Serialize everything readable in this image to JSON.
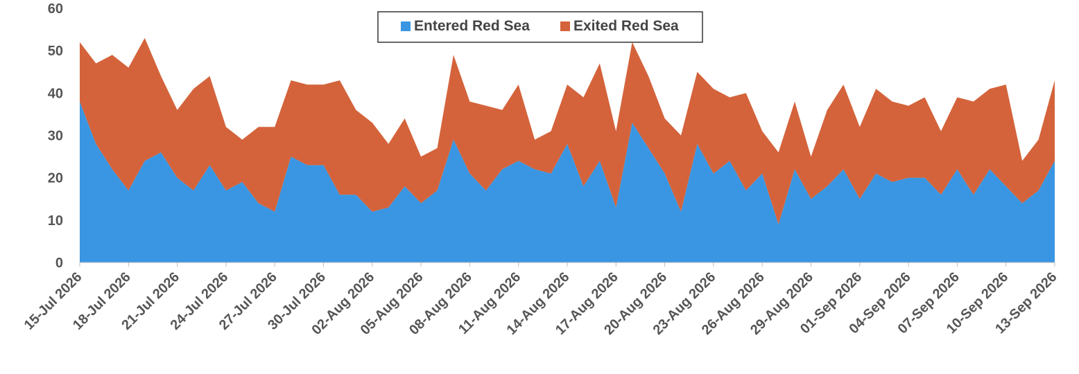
{
  "chart_data": {
    "type": "area",
    "stacked": true,
    "x": [
      "15-Jul 2026",
      "16-Jul 2026",
      "17-Jul 2026",
      "18-Jul 2026",
      "19-Jul 2026",
      "20-Jul 2026",
      "21-Jul 2026",
      "22-Jul 2026",
      "23-Jul 2026",
      "24-Jul 2026",
      "25-Jul 2026",
      "26-Jul 2026",
      "27-Jul 2026",
      "28-Jul 2026",
      "29-Jul 2026",
      "30-Jul 2026",
      "31-Jul 2026",
      "01-Aug 2026",
      "02-Aug 2026",
      "03-Aug 2026",
      "04-Aug 2026",
      "05-Aug 2026",
      "06-Aug 2026",
      "07-Aug 2026",
      "08-Aug 2026",
      "09-Aug 2026",
      "10-Aug 2026",
      "11-Aug 2026",
      "12-Aug 2026",
      "13-Aug 2026",
      "14-Aug 2026",
      "15-Aug 2026",
      "16-Aug 2026",
      "17-Aug 2026",
      "18-Aug 2026",
      "19-Aug 2026",
      "20-Aug 2026",
      "21-Aug 2026",
      "22-Aug 2026",
      "23-Aug 2026",
      "24-Aug 2026",
      "25-Aug 2026",
      "26-Aug 2026",
      "27-Aug 2026",
      "28-Aug 2026",
      "29-Aug 2026",
      "30-Aug 2026",
      "31-Aug 2026",
      "01-Sep 2026",
      "02-Sep 2026",
      "03-Sep 2026",
      "04-Sep 2026",
      "05-Sep 2026",
      "06-Sep 2026",
      "07-Sep 2026",
      "08-Sep 2026",
      "09-Sep 2026",
      "10-Sep 2026",
      "11-Sep 2026",
      "12-Sep 2026",
      "13-Sep 2026"
    ],
    "x_tick_labels": [
      "15-Jul 2026",
      "18-Jul 2026",
      "21-Jul 2026",
      "24-Jul 2026",
      "27-Jul 2026",
      "30-Jul 2026",
      "02-Aug 2026",
      "05-Aug 2026",
      "08-Aug 2026",
      "11-Aug 2026",
      "14-Aug 2026",
      "17-Aug 2026",
      "20-Aug 2026",
      "23-Aug 2026",
      "26-Aug 2026",
      "29-Aug 2026",
      "01-Sep 2026",
      "04-Sep 2026",
      "07-Sep 2026",
      "10-Sep 2026",
      "13-Sep 2026"
    ],
    "y_ticks": [
      "0",
      "10",
      "20",
      "30",
      "40",
      "50",
      "60"
    ],
    "ylim": [
      0,
      60
    ],
    "series": [
      {
        "name": "Entered Red Sea",
        "color": "#3a96e2",
        "values": [
          38,
          28,
          22,
          17,
          24,
          26,
          20,
          17,
          23,
          17,
          19,
          14,
          12,
          25,
          23,
          23,
          16,
          16,
          12,
          13,
          18,
          14,
          17,
          29,
          21,
          17,
          22,
          24,
          22,
          21,
          28,
          18,
          24,
          13,
          33,
          27,
          21,
          12,
          28,
          21,
          24,
          17,
          21,
          9,
          22,
          15,
          18,
          22,
          15,
          21,
          19,
          20,
          20,
          16,
          22,
          16,
          22,
          18,
          14,
          17,
          24
        ]
      },
      {
        "name": "Exited Red Sea",
        "color": "#d4633b",
        "values": [
          14,
          19,
          27,
          29,
          29,
          18,
          16,
          24,
          21,
          15,
          10,
          18,
          20,
          18,
          19,
          19,
          27,
          20,
          21,
          15,
          16,
          11,
          10,
          20,
          17,
          20,
          14,
          18,
          7,
          10,
          14,
          21,
          23,
          18,
          19,
          17,
          13,
          18,
          17,
          20,
          15,
          23,
          10,
          17,
          16,
          10,
          18,
          20,
          17,
          20,
          19,
          17,
          19,
          15,
          17,
          22,
          19,
          24,
          10,
          12,
          19
        ]
      }
    ],
    "legend_position": "top-center",
    "grid": false,
    "title": "",
    "xlabel": "",
    "ylabel": ""
  }
}
